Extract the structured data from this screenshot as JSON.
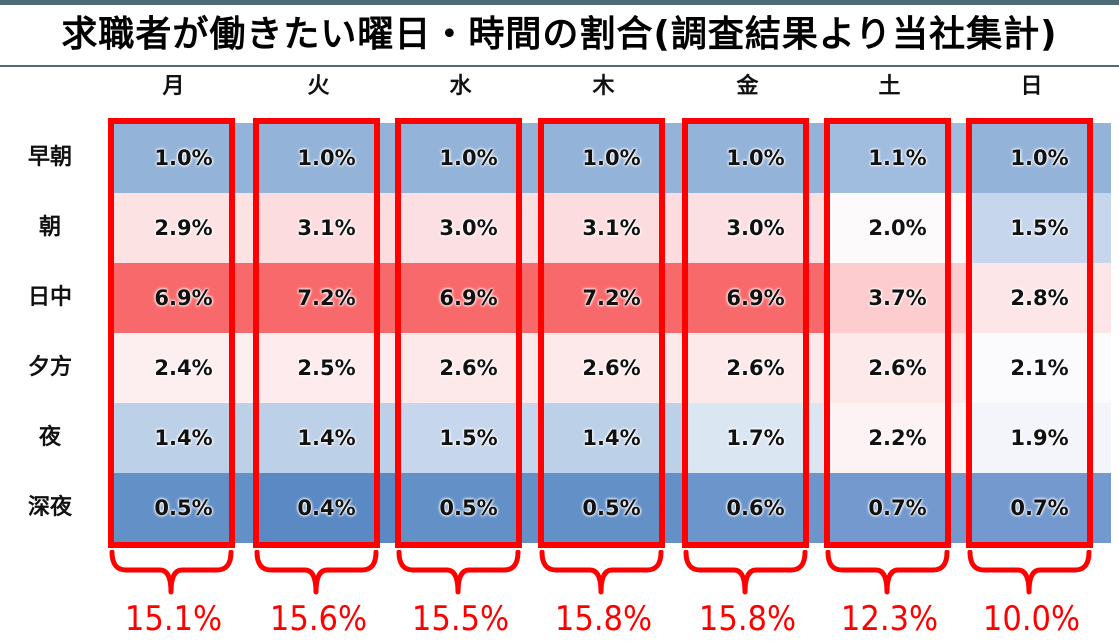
{
  "title": "求職者が働きたい曜日・時間の割合(調査結果より当社集計)",
  "days": [
    "月",
    "火",
    "水",
    "木",
    "金",
    "土",
    "日"
  ],
  "time_slots": [
    "早朝",
    "朝",
    "日中",
    "夕方",
    "夜",
    "深夜"
  ],
  "cells": [
    [
      "1.0%",
      "1.0%",
      "1.0%",
      "1.0%",
      "1.0%",
      "1.1%",
      "1.0%"
    ],
    [
      "2.9%",
      "3.1%",
      "3.0%",
      "3.1%",
      "3.0%",
      "2.0%",
      "1.5%"
    ],
    [
      "6.9%",
      "7.2%",
      "6.9%",
      "7.2%",
      "6.9%",
      "3.7%",
      "2.8%"
    ],
    [
      "2.4%",
      "2.5%",
      "2.6%",
      "2.6%",
      "2.6%",
      "2.6%",
      "2.1%"
    ],
    [
      "1.4%",
      "1.4%",
      "1.5%",
      "1.4%",
      "1.7%",
      "2.2%",
      "1.9%"
    ],
    [
      "0.5%",
      "0.4%",
      "0.5%",
      "0.5%",
      "0.6%",
      "0.7%",
      "0.7%"
    ]
  ],
  "cell_colors": [
    [
      "#94b3d9",
      "#94b3d9",
      "#94b3d9",
      "#94b3d9",
      "#94b3d9",
      "#a0bcdf",
      "#94b3d9"
    ],
    [
      "#fde2e4",
      "#fcdcdf",
      "#fcdfe2",
      "#fcdcdf",
      "#fcdfe2",
      "#fdfafc",
      "#c6d6ec"
    ],
    [
      "#f8696b",
      "#f8696b",
      "#f8696b",
      "#f8696b",
      "#f8696b",
      "#fccccf",
      "#fde6e8"
    ],
    [
      "#fdeef0",
      "#fdebed",
      "#fde8ea",
      "#fde8ea",
      "#fde8ea",
      "#fde8ea",
      "#fbfbfd"
    ],
    [
      "#bcd0e8",
      "#bcd0e8",
      "#c6d6ec",
      "#bcd0e8",
      "#dbe6f3",
      "#fdf3f5",
      "#f3f5fa"
    ],
    [
      "#6490c8",
      "#5a89c4",
      "#6490c8",
      "#6490c8",
      "#6b95cb",
      "#7399ce",
      "#7399ce"
    ]
  ],
  "totals": [
    "15.1%",
    "15.6%",
    "15.5%",
    "15.8%",
    "15.8%",
    "12.3%",
    "10.0%"
  ],
  "colors": {
    "highlight": "#ff0000",
    "rule": "#4f6a78"
  },
  "chart_data": {
    "type": "heatmap",
    "title": "求職者が働きたい曜日・時間の割合(調査結果より当社集計)",
    "x": [
      "月",
      "火",
      "水",
      "木",
      "金",
      "土",
      "日"
    ],
    "y": [
      "早朝",
      "朝",
      "日中",
      "夕方",
      "夜",
      "深夜"
    ],
    "values": [
      [
        1.0,
        1.0,
        1.0,
        1.0,
        1.0,
        1.1,
        1.0
      ],
      [
        2.9,
        3.1,
        3.0,
        3.1,
        3.0,
        2.0,
        1.5
      ],
      [
        6.9,
        7.2,
        6.9,
        7.2,
        6.9,
        3.7,
        2.8
      ],
      [
        2.4,
        2.5,
        2.6,
        2.6,
        2.6,
        2.6,
        2.1
      ],
      [
        1.4,
        1.4,
        1.5,
        1.4,
        1.7,
        2.2,
        1.9
      ],
      [
        0.5,
        0.4,
        0.5,
        0.5,
        0.6,
        0.7,
        0.7
      ]
    ],
    "unit": "%",
    "column_totals": [
      15.1,
      15.6,
      15.5,
      15.8,
      15.8,
      12.3,
      10.0
    ],
    "colorscale": "blue (low) - white - red (high)"
  }
}
